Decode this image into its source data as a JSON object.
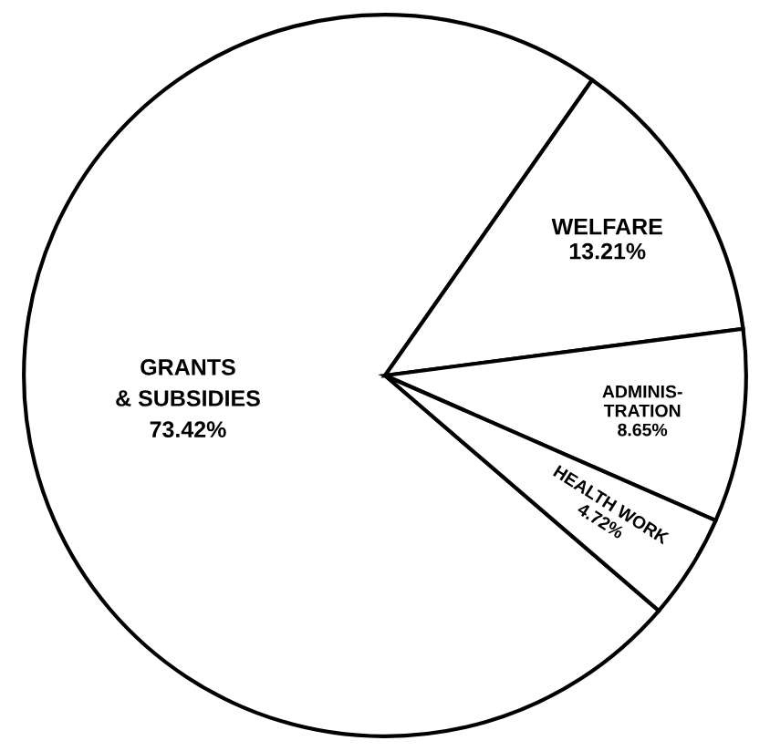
{
  "chart_data": {
    "type": "pie",
    "categories": [
      "GRANTS\n& SUBSIDIES",
      "WELFARE",
      "ADMINIS-\nTRATION",
      "HEALTH WORK"
    ],
    "values": [
      73.42,
      13.21,
      8.65,
      4.72
    ],
    "value_labels": [
      "73.42%",
      "13.21%",
      "8.65%",
      "4.72%"
    ],
    "colors": [
      "#ffffff",
      "#ffffff",
      "#ffffff",
      "#ffffff"
    ]
  }
}
